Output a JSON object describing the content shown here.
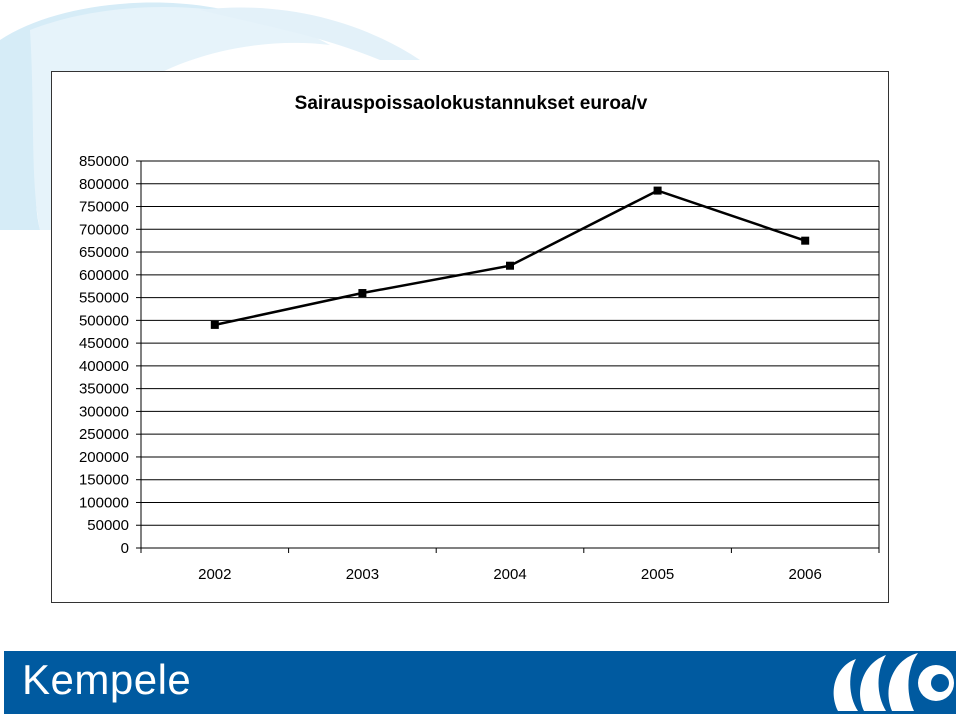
{
  "chart_data": {
    "type": "line",
    "title": "Sairauspoissaolokustannukset euroa/v",
    "categories": [
      "2002",
      "2003",
      "2004",
      "2005",
      "2006"
    ],
    "series": [
      {
        "values": [
          490000,
          560000,
          620000,
          785000,
          675000
        ]
      }
    ],
    "ylim": [
      0,
      850000
    ],
    "yticks": [
      0,
      50000,
      100000,
      150000,
      200000,
      250000,
      300000,
      350000,
      400000,
      450000,
      500000,
      550000,
      600000,
      650000,
      700000,
      750000,
      800000,
      850000
    ],
    "xlabel": "",
    "ylabel": "",
    "grid": true,
    "legend": "none",
    "line_color": "#000000",
    "marker": "square"
  },
  "footer": {
    "brand": "Kempele",
    "background_color": "#005aa0",
    "logo_icon": "kempele-swirl-logo"
  },
  "background": {
    "decoration_icon": "swirl-watermark",
    "color": "#d6ecf7"
  }
}
